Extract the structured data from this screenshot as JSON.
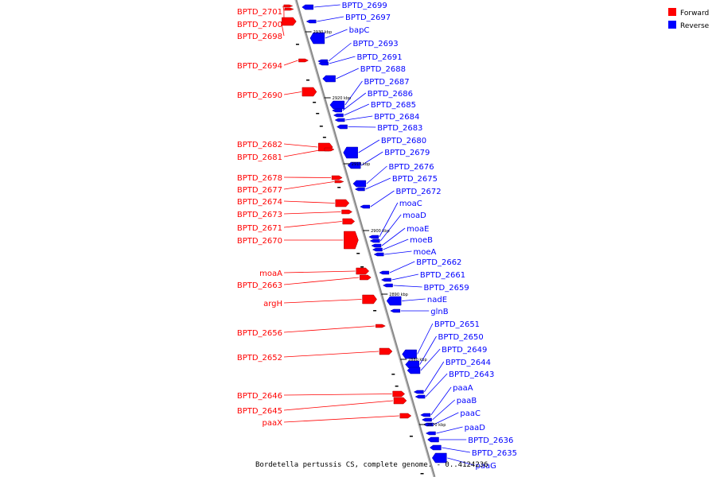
{
  "legend": {
    "forward_label": "Forward",
    "reverse_label": "Reverse",
    "forward_color": "#ff0000",
    "reverse_color": "#0000ff"
  },
  "caption": "Bordetella pertussis CS, complete genome. - 0..4124236",
  "ticks": [
    "2930 kbp",
    "2920 kbp",
    "2910 kbp",
    "2900 kbp",
    "2890 kbp",
    "2880 kbp",
    "2870 kbp"
  ],
  "forward_genes": [
    "BPTD_2701",
    "BPTD_2700",
    "BPTD_2698",
    "BPTD_2694",
    "BPTD_2690",
    "BPTD_2682",
    "BPTD_2681",
    "BPTD_2678",
    "BPTD_2677",
    "BPTD_2674",
    "BPTD_2673",
    "BPTD_2671",
    "BPTD_2670",
    "moaA",
    "BPTD_2663",
    "argH",
    "BPTD_2656",
    "BPTD_2652",
    "BPTD_2646",
    "BPTD_2645",
    "paaX"
  ],
  "reverse_genes": [
    "BPTD_2699",
    "BPTD_2697",
    "bapC",
    "BPTD_2693",
    "BPTD_2691",
    "BPTD_2688",
    "BPTD_2687",
    "BPTD_2686",
    "BPTD_2685",
    "BPTD_2684",
    "BPTD_2683",
    "BPTD_2680",
    "BPTD_2679",
    "BPTD_2676",
    "BPTD_2675",
    "BPTD_2672",
    "moaC",
    "moaD",
    "moaE",
    "moeB",
    "moeA",
    "BPTD_2662",
    "BPTD_2661",
    "BPTD_2659",
    "nadE",
    "glnB",
    "BPTD_2651",
    "BPTD_2650",
    "BPTD_2649",
    "BPTD_2644",
    "BPTD_2643",
    "paaA",
    "paaB",
    "paaC",
    "paaD",
    "BPTD_2636",
    "BPTD_2635",
    "paaG"
  ]
}
